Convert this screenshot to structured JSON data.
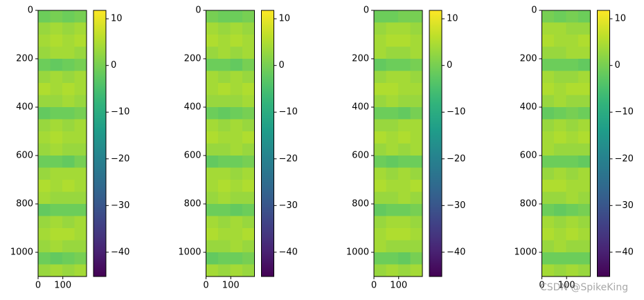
{
  "chart_data": [
    {
      "type": "heatmap",
      "cmap": "viridis",
      "xlim": [
        0,
        196
      ],
      "ylim": [
        1100,
        0
      ],
      "xticks": [
        0,
        100
      ],
      "yticks": [
        0,
        200,
        400,
        600,
        800,
        1000
      ],
      "clim": [
        -45.2,
        11.8
      ],
      "cticks": [
        {
          "value": -40,
          "label": "−40"
        },
        {
          "value": -30,
          "label": "−30"
        },
        {
          "value": -20,
          "label": "−20"
        },
        {
          "value": -10,
          "label": "−10"
        },
        0,
        10
      ],
      "z": [
        [
          -1,
          0,
          -1,
          0
        ],
        [
          3,
          4,
          3,
          4
        ],
        [
          4,
          5,
          4,
          5
        ],
        [
          3,
          4,
          4,
          3
        ],
        [
          -1,
          -2,
          -1,
          0
        ],
        [
          3,
          4,
          3,
          4
        ],
        [
          5,
          4,
          5,
          4
        ],
        [
          3,
          3,
          4,
          3
        ],
        [
          -2,
          -1,
          -1,
          0
        ],
        [
          3,
          4,
          3,
          4
        ],
        [
          4,
          5,
          4,
          4
        ],
        [
          3,
          4,
          3,
          3
        ],
        [
          -1,
          -1,
          -2,
          0
        ],
        [
          3,
          4,
          4,
          4
        ],
        [
          5,
          4,
          5,
          4
        ],
        [
          4,
          3,
          3,
          3
        ],
        [
          -2,
          -1,
          -1,
          -1
        ],
        [
          3,
          4,
          3,
          4
        ],
        [
          4,
          5,
          5,
          4
        ],
        [
          3,
          4,
          3,
          3
        ],
        [
          -1,
          -2,
          -1,
          0
        ],
        [
          3,
          4,
          3,
          4
        ]
      ]
    },
    {
      "type": "heatmap",
      "cmap": "viridis",
      "xlim": [
        0,
        196
      ],
      "ylim": [
        1100,
        0
      ],
      "xticks": [
        0,
        100
      ],
      "yticks": [
        0,
        200,
        400,
        600,
        800,
        1000
      ],
      "clim": [
        -45.2,
        11.8
      ],
      "cticks": [
        {
          "value": -40,
          "label": "−40"
        },
        {
          "value": -30,
          "label": "−30"
        },
        {
          "value": -20,
          "label": "−20"
        },
        {
          "value": -10,
          "label": "−10"
        },
        0,
        10
      ],
      "z": [
        [
          0,
          -1,
          -1,
          0
        ],
        [
          4,
          3,
          4,
          3
        ],
        [
          5,
          4,
          5,
          4
        ],
        [
          3,
          4,
          3,
          4
        ],
        [
          -1,
          -1,
          -2,
          0
        ],
        [
          4,
          3,
          4,
          3
        ],
        [
          4,
          5,
          4,
          5
        ],
        [
          3,
          3,
          3,
          4
        ],
        [
          -1,
          -2,
          -1,
          0
        ],
        [
          4,
          3,
          4,
          3
        ],
        [
          5,
          4,
          4,
          5
        ],
        [
          3,
          3,
          4,
          3
        ],
        [
          -2,
          -1,
          -1,
          0
        ],
        [
          4,
          4,
          3,
          4
        ],
        [
          4,
          5,
          4,
          5
        ],
        [
          3,
          4,
          3,
          3
        ],
        [
          -1,
          -1,
          -2,
          -1
        ],
        [
          4,
          3,
          4,
          3
        ],
        [
          5,
          4,
          4,
          5
        ],
        [
          3,
          3,
          4,
          3
        ],
        [
          -2,
          -1,
          -1,
          0
        ],
        [
          4,
          3,
          4,
          3
        ]
      ]
    },
    {
      "type": "heatmap",
      "cmap": "viridis",
      "xlim": [
        0,
        196
      ],
      "ylim": [
        1100,
        0
      ],
      "xticks": [
        0,
        100
      ],
      "yticks": [
        0,
        200,
        400,
        600,
        800,
        1000
      ],
      "clim": [
        -45.2,
        11.8
      ],
      "cticks": [
        {
          "value": -40,
          "label": "−40"
        },
        {
          "value": -30,
          "label": "−30"
        },
        {
          "value": -20,
          "label": "−20"
        },
        {
          "value": -10,
          "label": "−10"
        },
        0,
        10
      ],
      "z": [
        [
          -1,
          -1,
          0,
          0
        ],
        [
          3,
          4,
          4,
          3
        ],
        [
          4,
          5,
          5,
          4
        ],
        [
          4,
          3,
          3,
          4
        ],
        [
          -2,
          -1,
          -1,
          0
        ],
        [
          3,
          4,
          4,
          3
        ],
        [
          5,
          5,
          4,
          4
        ],
        [
          3,
          4,
          3,
          3
        ],
        [
          -1,
          -1,
          -2,
          0
        ],
        [
          3,
          3,
          4,
          4
        ],
        [
          5,
          4,
          5,
          4
        ],
        [
          3,
          4,
          3,
          4
        ],
        [
          -1,
          -2,
          -1,
          -1
        ],
        [
          4,
          3,
          4,
          3
        ],
        [
          5,
          4,
          4,
          5
        ],
        [
          3,
          3,
          4,
          3
        ],
        [
          -2,
          -1,
          -1,
          0
        ],
        [
          3,
          4,
          4,
          3
        ],
        [
          4,
          5,
          5,
          4
        ],
        [
          4,
          3,
          3,
          3
        ],
        [
          -1,
          -1,
          -2,
          0
        ],
        [
          3,
          4,
          3,
          4
        ]
      ]
    },
    {
      "type": "heatmap",
      "cmap": "viridis",
      "xlim": [
        0,
        196
      ],
      "ylim": [
        1100,
        0
      ],
      "xticks": [
        0,
        100
      ],
      "yticks": [
        0,
        200,
        400,
        600,
        800,
        1000
      ],
      "clim": [
        -45.2,
        11.8
      ],
      "cticks": [
        {
          "value": -40,
          "label": "−40"
        },
        {
          "value": -30,
          "label": "−30"
        },
        {
          "value": -20,
          "label": "−20"
        },
        {
          "value": -10,
          "label": "−10"
        },
        0,
        10
      ],
      "z": [
        [
          0,
          -1,
          0,
          -1
        ],
        [
          4,
          4,
          3,
          3
        ],
        [
          5,
          4,
          4,
          5
        ],
        [
          3,
          3,
          4,
          4
        ],
        [
          -1,
          -1,
          -1,
          -2
        ],
        [
          4,
          3,
          3,
          4
        ],
        [
          5,
          4,
          5,
          5
        ],
        [
          3,
          4,
          3,
          3
        ],
        [
          -2,
          -1,
          0,
          -1
        ],
        [
          3,
          4,
          3,
          4
        ],
        [
          4,
          5,
          4,
          5
        ],
        [
          4,
          3,
          3,
          3
        ],
        [
          -1,
          -1,
          -1,
          -2
        ],
        [
          3,
          4,
          3,
          4
        ],
        [
          5,
          5,
          4,
          4
        ],
        [
          3,
          3,
          4,
          3
        ],
        [
          -1,
          -2,
          -1,
          0
        ],
        [
          4,
          3,
          4,
          3
        ],
        [
          5,
          4,
          5,
          4
        ],
        [
          3,
          4,
          3,
          3
        ],
        [
          -1,
          -1,
          -1,
          -1
        ],
        [
          4,
          3,
          4,
          3
        ]
      ]
    }
  ],
  "watermark": "CSDN @SpikeKing"
}
